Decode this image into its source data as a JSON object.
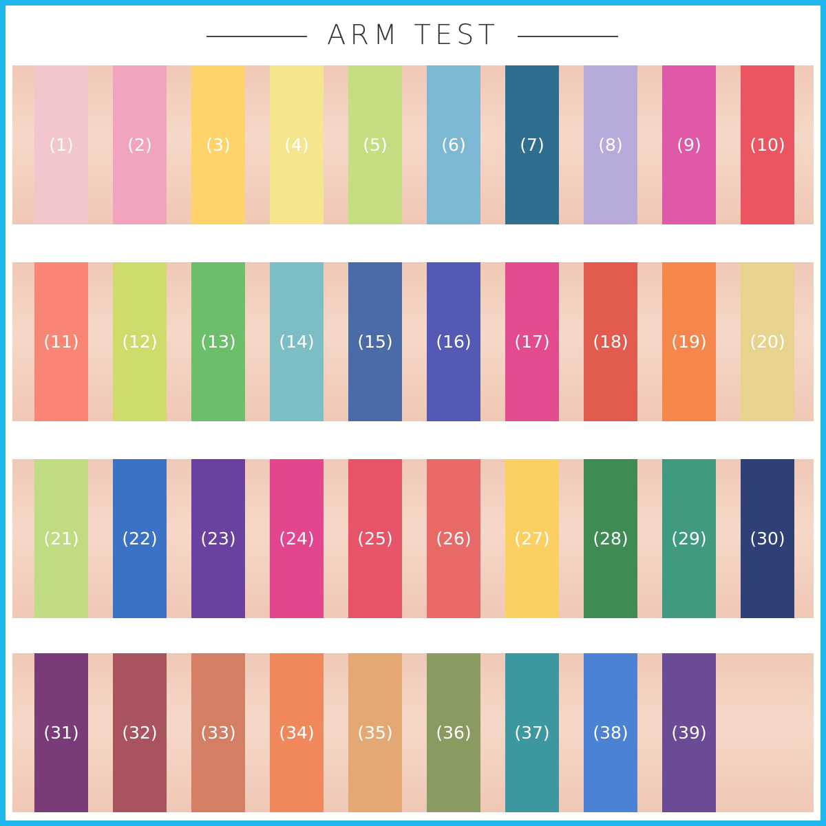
{
  "title": "ARM TEST",
  "rows": [
    [
      {
        "label": "(1)",
        "color": "#f2c6cc"
      },
      {
        "label": "(2)",
        "color": "#f1a3c0"
      },
      {
        "label": "(3)",
        "color": "#fdd36a"
      },
      {
        "label": "(4)",
        "color": "#f5e68e"
      },
      {
        "label": "(5)",
        "color": "#c5de82"
      },
      {
        "label": "(6)",
        "color": "#7cb8d3"
      },
      {
        "label": "(7)",
        "color": "#2f6e8f"
      },
      {
        "label": "(8)",
        "color": "#b7aadb"
      },
      {
        "label": "(9)",
        "color": "#e059a8"
      },
      {
        "label": "(10)",
        "color": "#ea5561"
      }
    ],
    [
      {
        "label": "(11)",
        "color": "#f98574"
      },
      {
        "label": "(12)",
        "color": "#cfdb6a"
      },
      {
        "label": "(13)",
        "color": "#6cbf6a"
      },
      {
        "label": "(14)",
        "color": "#7dbdc6"
      },
      {
        "label": "(15)",
        "color": "#4a6aa8"
      },
      {
        "label": "(16)",
        "color": "#5359b5"
      },
      {
        "label": "(17)",
        "color": "#e24b8e"
      },
      {
        "label": "(18)",
        "color": "#e35a4f"
      },
      {
        "label": "(19)",
        "color": "#f6874c"
      },
      {
        "label": "(20)",
        "color": "#e8d38e"
      }
    ],
    [
      {
        "label": "(21)",
        "color": "#bfdc83"
      },
      {
        "label": "(22)",
        "color": "#3c72c5"
      },
      {
        "label": "(23)",
        "color": "#6a40a0"
      },
      {
        "label": "(24)",
        "color": "#e3468d"
      },
      {
        "label": "(25)",
        "color": "#e85467"
      },
      {
        "label": "(26)",
        "color": "#e86a66"
      },
      {
        "label": "(27)",
        "color": "#fbd063"
      },
      {
        "label": "(28)",
        "color": "#3f8a55"
      },
      {
        "label": "(29)",
        "color": "#3f9a80"
      },
      {
        "label": "(30)",
        "color": "#2e4076"
      }
    ],
    [
      {
        "label": "(31)",
        "color": "#7a3c78"
      },
      {
        "label": "(32)",
        "color": "#a9535e"
      },
      {
        "label": "(33)",
        "color": "#d47f65"
      },
      {
        "label": "(34)",
        "color": "#f0885c"
      },
      {
        "label": "(35)",
        "color": "#e3a874"
      },
      {
        "label": "(36)",
        "color": "#8a9b62"
      },
      {
        "label": "(37)",
        "color": "#3d979f"
      },
      {
        "label": "(38)",
        "color": "#4b82d3"
      },
      {
        "label": "(39)",
        "color": "#6b4b96"
      }
    ]
  ]
}
